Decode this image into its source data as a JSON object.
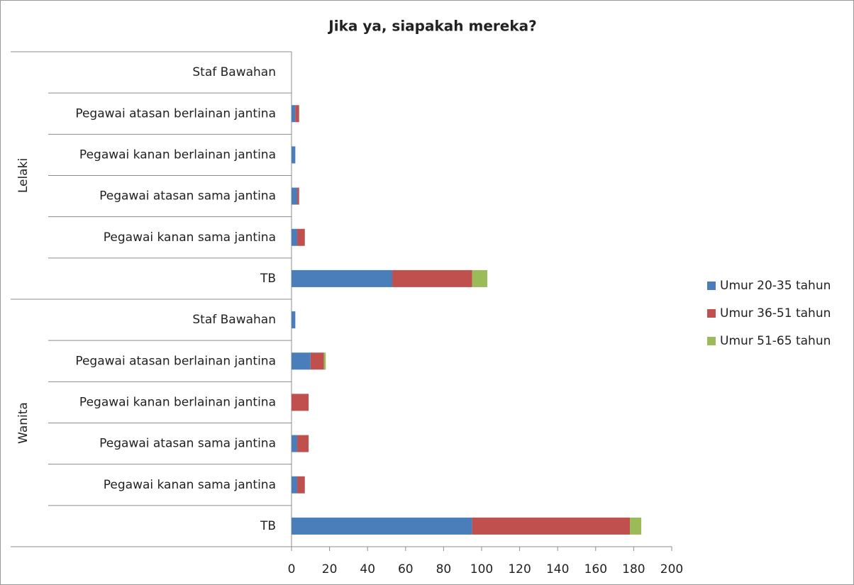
{
  "chart_data": {
    "type": "stacked-bar-horizontal",
    "title": "Jika ya, siapakah mereka?",
    "groups": [
      {
        "name": "Lelaki",
        "categories": [
          "Staf Bawahan",
          "Pegawai atasan berlainan jantina",
          "Pegawai kanan berlainan jantina",
          "Pegawai atasan sama jantina",
          "Pegawai kanan sama jantina",
          "TB"
        ]
      },
      {
        "name": "Wanita",
        "categories": [
          "Staf Bawahan",
          "Pegawai atasan berlainan jantina",
          "Pegawai kanan berlainan jantina",
          "Pegawai atasan sama jantina",
          "Pegawai kanan sama jantina",
          "TB"
        ]
      }
    ],
    "series": [
      {
        "name": "Umur 20-35 tahun",
        "color": "#4a7ebb",
        "values": [
          0,
          2,
          2,
          3,
          3,
          53,
          2,
          10,
          0,
          3,
          3,
          95
        ]
      },
      {
        "name": "Umur 36-51 tahun",
        "color": "#c0504d",
        "values": [
          0,
          2,
          0,
          1,
          4,
          42,
          0,
          7,
          9,
          6,
          4,
          83
        ]
      },
      {
        "name": "Umur 51-65 tahun",
        "color": "#9bbb59",
        "values": [
          0,
          0,
          0,
          0,
          0,
          8,
          0,
          1,
          0,
          0,
          0,
          6
        ]
      }
    ],
    "xlim": [
      0,
      200
    ],
    "xticks": [
      0,
      20,
      40,
      60,
      80,
      100,
      120,
      140,
      160,
      180,
      200
    ],
    "legend": "right"
  }
}
